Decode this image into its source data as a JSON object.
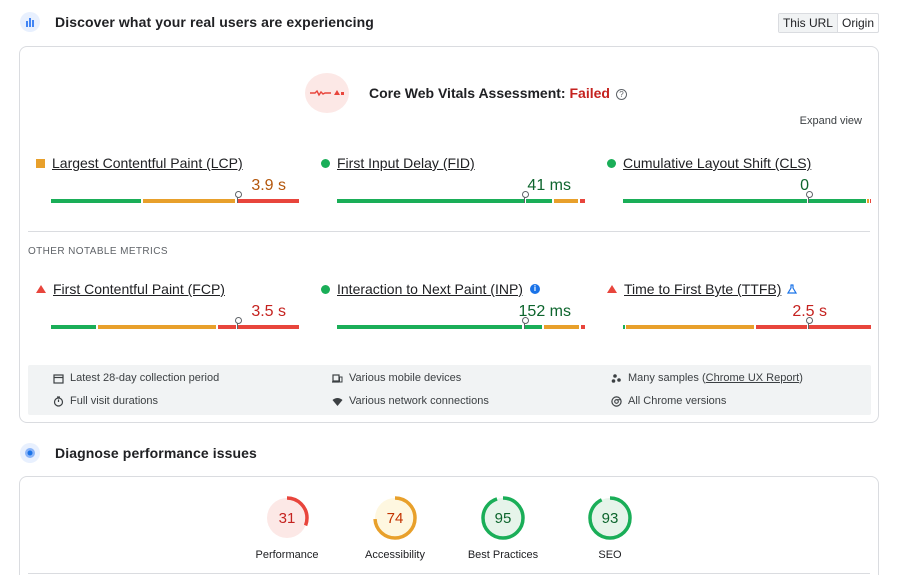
{
  "crux": {
    "title": "Discover what your real users are experiencing",
    "tabs": [
      "This URL",
      "Origin"
    ],
    "assessment": {
      "label": "Core Web Vitals Assessment:",
      "status": "Failed"
    },
    "expand_label": "Expand view",
    "core_metrics": [
      {
        "name": "Largest Contentful Paint (LCP)",
        "value": "3.9 s",
        "rating": "average"
      },
      {
        "name": "First Input Delay (FID)",
        "value": "41 ms",
        "rating": "good"
      },
      {
        "name": "Cumulative Layout Shift (CLS)",
        "value": "0",
        "rating": "good"
      }
    ],
    "other_label": "OTHER NOTABLE METRICS",
    "other_metrics": [
      {
        "name": "First Contentful Paint (FCP)",
        "value": "3.5 s",
        "rating": "poor"
      },
      {
        "name": "Interaction to Next Paint (INP)",
        "value": "152 ms",
        "rating": "good"
      },
      {
        "name": "Time to First Byte (TTFB)",
        "value": "2.5 s",
        "rating": "poor"
      }
    ],
    "info": {
      "collection": "Latest 28-day collection period",
      "visits": "Full visit durations",
      "devices": "Various mobile devices",
      "network": "Various network connections",
      "samples_prefix": "Many samples (",
      "samples_link": "Chrome UX Report",
      "samples_suffix": ")",
      "chrome": "All Chrome versions"
    }
  },
  "diagnose": {
    "title": "Diagnose performance issues",
    "scores": [
      {
        "label": "Performance",
        "score": 31,
        "color": "#c5221f",
        "track": "#fce8e6"
      },
      {
        "label": "Accessibility",
        "score": 74,
        "color": "#c33300",
        "track": "#fef7e0"
      },
      {
        "label": "Best Practices",
        "score": 95,
        "color": "#0d652d",
        "track": "#e6f4ea"
      },
      {
        "label": "SEO",
        "score": 93,
        "color": "#0d652d",
        "track": "#e6f4ea"
      }
    ]
  },
  "colors": {
    "good": "#1aae58",
    "average": "#e8a02b",
    "poor": "#e8453c"
  }
}
